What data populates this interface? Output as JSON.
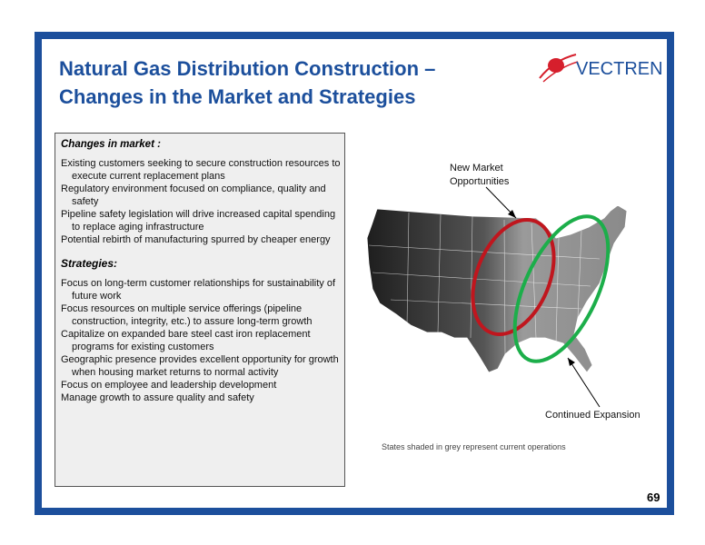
{
  "header": {
    "title_lines": [
      "Natural Gas Distribution Construction –",
      "Changes in the Market and Strategies"
    ],
    "logo": "VECTREN"
  },
  "box": {
    "sections": [
      {
        "heading": "Changes in market :",
        "items": [
          "Existing customers seeking to secure construction resources to execute current replacement plans",
          "Regulatory environment focused on compliance,  quality and safety",
          "Pipeline safety legislation will drive increased capital spending to replace aging infrastructure",
          "Potential rebirth of manufacturing spurred by cheaper energy"
        ]
      },
      {
        "heading": "Strategies:",
        "items": [
          "Focus on long-term customer relationships for sustainability of future work",
          "Focus resources on multiple service offerings (pipeline construction, integrity, etc.) to assure long-term growth",
          "Capitalize on expanded bare steel cast iron replacement programs for existing customers",
          "Geographic presence provides excellent opportunity for growth when housing market returns to normal activity",
          "Focus on employee and leadership development",
          "Manage growth to assure quality and safety"
        ]
      }
    ]
  },
  "map": {
    "label_new": "New Market Opportunities",
    "label_expansion": "Continued Expansion",
    "caption": "States shaded in grey represent current operations"
  },
  "page_number": "69"
}
